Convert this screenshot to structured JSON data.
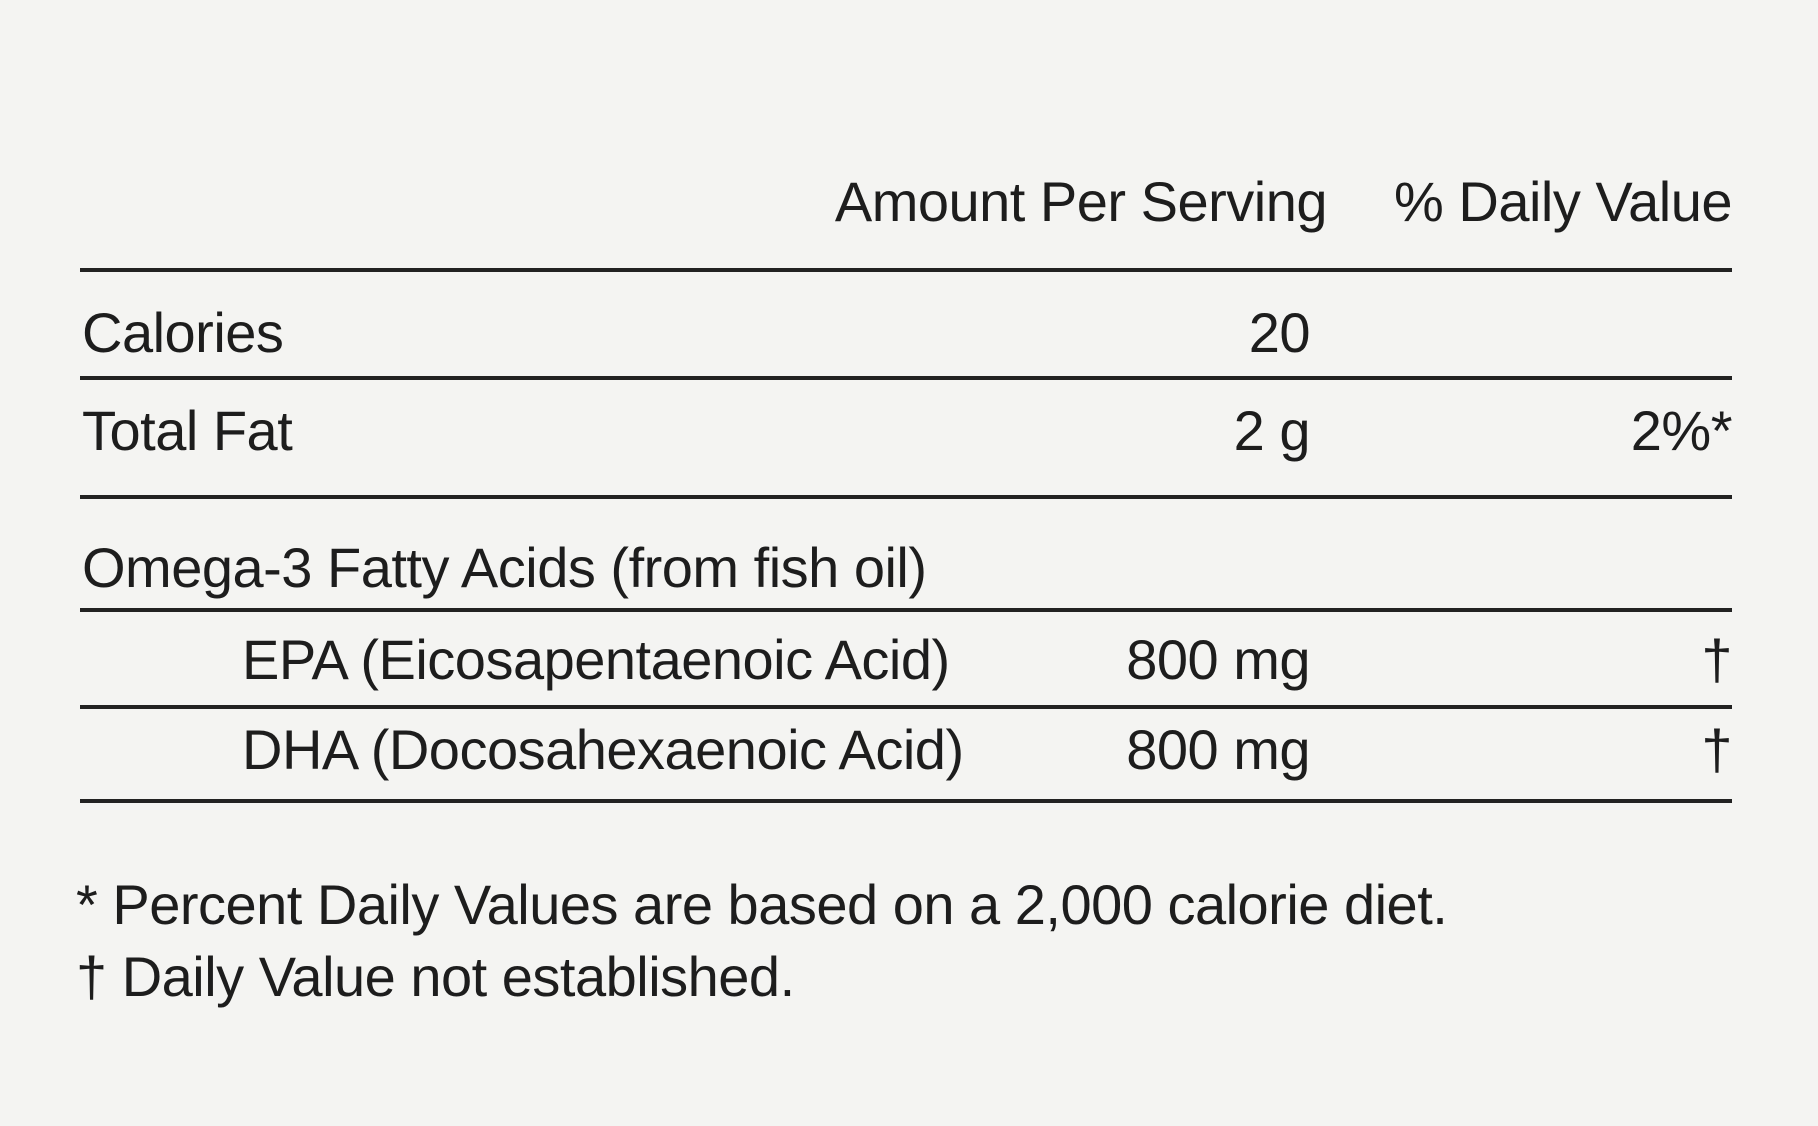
{
  "panel": {
    "header": {
      "amount_per_serving": "Amount Per Serving",
      "percent_daily_value": "% Daily Value"
    },
    "rows": [
      {
        "label": "Calories",
        "amount": "20",
        "daily_value": ""
      },
      {
        "label": "Total Fat",
        "amount": "2 g",
        "daily_value": "2%*"
      },
      {
        "label": "Omega-3 Fatty Acids (from fish oil)",
        "amount": "",
        "daily_value": ""
      },
      {
        "label": "EPA (Eicosapentaenoic Acid)",
        "amount": "800 mg",
        "daily_value": "†"
      },
      {
        "label": "DHA (Docosahexaenoic Acid)",
        "amount": "800 mg",
        "daily_value": "†"
      }
    ],
    "footnotes": [
      "* Percent Daily Values are based on a 2,000 calorie diet.",
      "† Daily Value not established."
    ],
    "colors": {
      "background": "#f4f4f2",
      "text": "#1d1d1d",
      "rule": "#222222"
    }
  }
}
